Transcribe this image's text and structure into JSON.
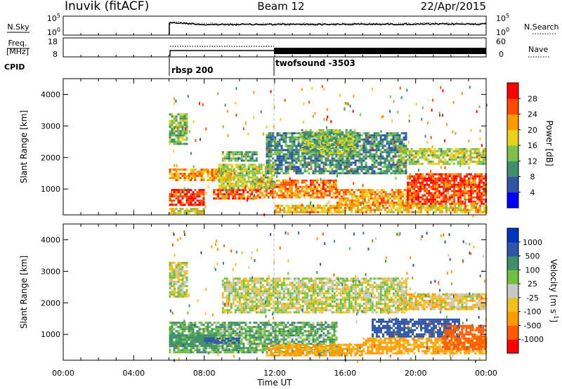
{
  "header": {
    "station": "Inuvik (fitACF)",
    "beam": "Beam 12",
    "date": "22/Apr/2015"
  },
  "noise_panel": {
    "left_label": "N.Sky",
    "left_ticks": [
      "10^5",
      "10^0"
    ],
    "right_label": "N.Search",
    "right_ticks": [
      "10^5",
      "10^0"
    ]
  },
  "freq_panel": {
    "label_line1": "Freq.",
    "label_line2": "[MHz]",
    "left_ticks": [
      "18",
      "8"
    ],
    "right_label": "Nave",
    "right_ticks": [
      "60",
      "0"
    ]
  },
  "cpid": {
    "label": "CPID",
    "segments": [
      {
        "start_hour": 6.0,
        "label": "rbsp 200"
      },
      {
        "start_hour": 12.0,
        "label": "twofsound -3503"
      }
    ]
  },
  "colors": {
    "power": [
      "#0000ff",
      "#2e55a8",
      "#3f8f6a",
      "#7cc050",
      "#e6d21e",
      "#ff9a00",
      "#ff4a00",
      "#ff0000"
    ],
    "velocity": [
      "#ff0000",
      "#ff5a00",
      "#ff9a00",
      "#f0c020",
      "#c8c8c8",
      "#70c040",
      "#3f8f6a",
      "#2e55a8",
      "#0033bb"
    ]
  },
  "chart_data": [
    {
      "type": "heatmap",
      "name": "power",
      "ylabel": "Slant Range [km]",
      "xlim": [
        0,
        24
      ],
      "ylim": [
        180,
        4500
      ],
      "yticks": [
        1000,
        2000,
        3000,
        4000
      ],
      "colorbar": {
        "label": "Power [dB]",
        "range": [
          0,
          32
        ],
        "tick_labels": [
          "4",
          "8",
          "12",
          "16",
          "20",
          "24",
          "28"
        ]
      },
      "regions": [
        {
          "x": [
            6.0,
            8.0
          ],
          "y": [
            500,
            1000
          ],
          "value": 28
        },
        {
          "x": [
            6.0,
            9.5
          ],
          "y": [
            1300,
            1650
          ],
          "value": 22
        },
        {
          "x": [
            8.5,
            11.0
          ],
          "y": [
            700,
            1000
          ],
          "value": 26
        },
        {
          "x": [
            11.0,
            15.5
          ],
          "y": [
            700,
            1300
          ],
          "value": 24
        },
        {
          "x": [
            15.5,
            19.5
          ],
          "y": [
            500,
            1000
          ],
          "value": 22
        },
        {
          "x": [
            19.5,
            24.0
          ],
          "y": [
            500,
            1500
          ],
          "value": 27
        },
        {
          "x": [
            6.0,
            8.0
          ],
          "y": [
            200,
            400
          ],
          "value": 18
        },
        {
          "x": [
            9.0,
            11.0
          ],
          "y": [
            1900,
            2200
          ],
          "value": 12
        },
        {
          "x": [
            11.5,
            19.5
          ],
          "y": [
            1500,
            2800
          ],
          "value": 10
        },
        {
          "x": [
            13.5,
            16.5
          ],
          "y": [
            2100,
            2900
          ],
          "value": 14
        },
        {
          "x": [
            19.0,
            24.0
          ],
          "y": [
            1800,
            2300
          ],
          "value": 16
        },
        {
          "x": [
            6.0,
            7.0
          ],
          "y": [
            2400,
            3400
          ],
          "value": 14
        },
        {
          "x": [
            8.8,
            12.0
          ],
          "y": [
            1000,
            1800
          ],
          "value": 16
        },
        {
          "x": [
            12.0,
            24.0
          ],
          "y": [
            250,
            500
          ],
          "value": 20
        }
      ]
    },
    {
      "type": "heatmap",
      "name": "velocity",
      "ylabel": "Slant Range [km]",
      "xlabel": "Time UT",
      "xlim": [
        0,
        24
      ],
      "ylim": [
        180,
        4500
      ],
      "yticks": [
        1000,
        2000,
        3000,
        4000
      ],
      "xtick_labels": [
        "00:00",
        "04:00",
        "08:00",
        "12:00",
        "16:00",
        "20:00",
        "00:00"
      ],
      "colorbar": {
        "label": "Velocity [m s^-1]",
        "tick_labels": [
          "1000",
          "500",
          "100",
          "25",
          "-25",
          "-100",
          "-500",
          "-1000"
        ]
      },
      "regions": [
        {
          "x": [
            6.0,
            15.5
          ],
          "y": [
            400,
            1400
          ],
          "value": 100
        },
        {
          "x": [
            6.0,
            8.5
          ],
          "y": [
            600,
            1000
          ],
          "value": 200
        },
        {
          "x": [
            8.0,
            10.0
          ],
          "y": [
            700,
            900
          ],
          "value": 600
        },
        {
          "x": [
            9.0,
            19.5
          ],
          "y": [
            1700,
            2800
          ],
          "value": 0
        },
        {
          "x": [
            6.0,
            7.0
          ],
          "y": [
            2200,
            3300
          ],
          "value": 0
        },
        {
          "x": [
            17.5,
            22.5
          ],
          "y": [
            900,
            1500
          ],
          "value": 600
        },
        {
          "x": [
            17.0,
            24.0
          ],
          "y": [
            400,
            900
          ],
          "value": -150
        },
        {
          "x": [
            11.5,
            17.0
          ],
          "y": [
            300,
            700
          ],
          "value": -150
        },
        {
          "x": [
            21.5,
            24.0
          ],
          "y": [
            500,
            1300
          ],
          "value": -600
        },
        {
          "x": [
            19.0,
            24.0
          ],
          "y": [
            1800,
            2300
          ],
          "value": -50
        }
      ]
    }
  ]
}
